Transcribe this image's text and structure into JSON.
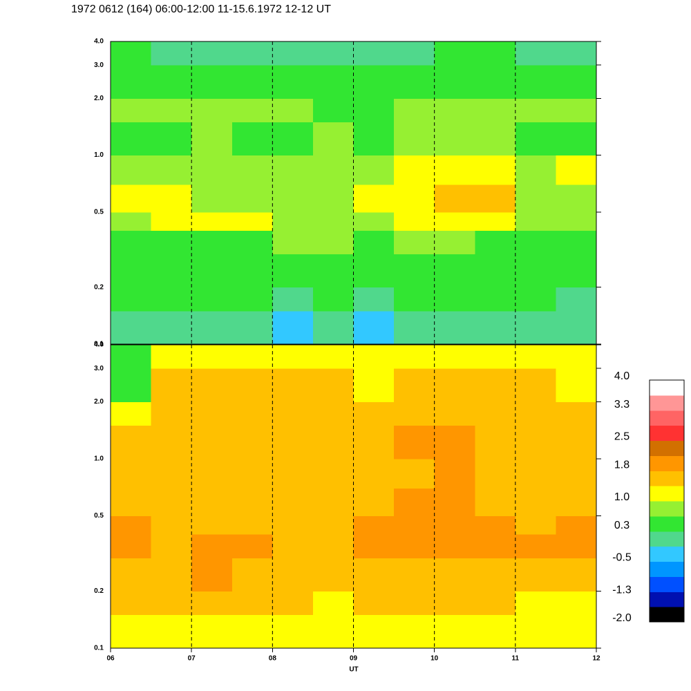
{
  "chart_data": {
    "type": "heatmap",
    "title": "1972 0612 (164) 06:00-12:00 11-15.6.1972  12-12 UT",
    "xlabel": "UT",
    "xlim": [
      6,
      12
    ],
    "xticks": [
      {
        "value": 6,
        "label": "06"
      },
      {
        "value": 7,
        "label": "07"
      },
      {
        "value": 8,
        "label": "08"
      },
      {
        "value": 9,
        "label": "09"
      },
      10,
      11,
      12
    ],
    "ylim": [
      0.1,
      4.0
    ],
    "yticks": [
      0.1,
      0.2,
      0.5,
      {
        "value": 1,
        "label": "1.0"
      },
      {
        "value": 2,
        "label": "2.0"
      },
      {
        "value": 3,
        "label": "3.0"
      },
      {
        "value": 4,
        "label": "4.0"
      }
    ],
    "log_y": true,
    "grid": true,
    "x_edges": [
      6,
      6.5,
      7,
      7.5,
      8,
      8.5,
      9,
      9.5,
      10,
      10.5,
      11,
      11.5,
      12
    ],
    "y_edges": [
      0.1,
      0.15,
      0.2,
      0.3,
      0.4,
      0.5,
      0.7,
      1.0,
      1.5,
      2.0,
      3.0,
      4.0
    ],
    "panels": [
      {
        "values": [
          [
            0.0,
            0.1,
            0.0,
            0.1,
            -0.2,
            0.2,
            -0.3,
            0.1,
            0.0,
            0.1,
            0.0,
            -0.1
          ],
          [
            0.3,
            0.3,
            0.4,
            0.3,
            0.0,
            0.5,
            0.1,
            0.3,
            0.3,
            0.3,
            0.3,
            0.2
          ],
          [
            0.4,
            0.4,
            0.5,
            0.4,
            0.6,
            0.6,
            0.3,
            0.4,
            0.4,
            0.5,
            0.4,
            0.4
          ],
          [
            0.5,
            0.5,
            0.6,
            0.5,
            0.8,
            0.7,
            0.5,
            0.7,
            0.7,
            0.6,
            0.5,
            0.5
          ],
          [
            0.9,
            1.0,
            1.0,
            1.0,
            0.9,
            0.8,
            0.9,
            1.1,
            1.2,
            1.1,
            0.9,
            0.8
          ],
          [
            1.1,
            1.2,
            0.9,
            0.9,
            0.8,
            0.7,
            1.0,
            1.3,
            1.4,
            1.4,
            0.9,
            0.9
          ],
          [
            0.8,
            0.7,
            0.8,
            0.7,
            0.7,
            0.7,
            0.8,
            1.1,
            1.2,
            1.2,
            0.8,
            1.0
          ],
          [
            0.6,
            0.6,
            0.7,
            0.6,
            0.6,
            0.7,
            0.6,
            0.8,
            0.8,
            0.7,
            0.6,
            0.6
          ],
          [
            0.9,
            0.8,
            0.7,
            0.7,
            0.7,
            0.6,
            0.6,
            0.8,
            0.9,
            0.9,
            0.8,
            0.7
          ],
          [
            0.6,
            0.5,
            0.5,
            0.5,
            0.4,
            0.3,
            0.3,
            0.5,
            0.6,
            0.6,
            0.5,
            0.5
          ],
          [
            0.3,
            0.2,
            0.2,
            0.2,
            0.1,
            0.0,
            -0.1,
            0.2,
            0.3,
            0.3,
            0.2,
            0.2
          ]
        ]
      },
      {
        "values": [
          [
            1.2,
            1.3,
            1.3,
            1.2,
            1.2,
            1.1,
            1.2,
            1.3,
            1.3,
            1.2,
            1.1,
            1.0
          ],
          [
            1.5,
            1.5,
            1.6,
            1.4,
            1.4,
            1.3,
            1.4,
            1.5,
            1.5,
            1.4,
            1.3,
            1.3
          ],
          [
            1.7,
            1.7,
            1.8,
            1.7,
            1.6,
            1.5,
            1.6,
            1.7,
            1.7,
            1.6,
            1.5,
            1.6
          ],
          [
            1.9,
            1.7,
            1.9,
            1.8,
            1.7,
            1.7,
            1.8,
            2.0,
            2.1,
            1.9,
            1.8,
            1.8
          ],
          [
            1.8,
            1.6,
            1.7,
            1.6,
            1.6,
            1.7,
            1.8,
            2.0,
            2.1,
            1.8,
            1.7,
            1.9
          ],
          [
            1.6,
            1.5,
            1.6,
            1.5,
            1.4,
            1.6,
            1.6,
            1.8,
            1.8,
            1.7,
            1.6,
            1.7
          ],
          [
            1.5,
            1.5,
            1.5,
            1.6,
            1.4,
            1.5,
            1.5,
            1.7,
            1.8,
            1.7,
            1.6,
            1.6
          ],
          [
            1.4,
            1.6,
            1.6,
            1.5,
            1.4,
            1.5,
            1.5,
            1.8,
            1.8,
            1.7,
            1.6,
            1.5
          ],
          [
            1.0,
            1.5,
            1.6,
            1.5,
            1.5,
            1.5,
            1.4,
            1.7,
            1.7,
            1.7,
            1.6,
            1.4
          ],
          [
            0.6,
            1.4,
            1.5,
            1.4,
            1.4,
            1.4,
            1.3,
            1.6,
            1.6,
            1.6,
            1.5,
            1.3
          ],
          [
            0.5,
            1.1,
            1.2,
            1.1,
            1.1,
            1.0,
            1.0,
            1.3,
            1.3,
            1.2,
            1.1,
            1.0
          ]
        ]
      }
    ],
    "colorbar": {
      "lim": [
        -2,
        4
      ],
      "colors": [
        "#000000",
        "#0010b0",
        "#0050ff",
        "#0096ff",
        "#32c8ff",
        "#50d88c",
        "#32e632",
        "#96f032",
        "#ffff00",
        "#ffc000",
        "#ff9600",
        "#d27000",
        "#ff3232",
        "#ff6464",
        "#ff9696",
        "#ffffff"
      ],
      "ticks": [
        {
          "value": -2,
          "label": "-2.0"
        },
        -1.3,
        -0.5,
        0.3,
        {
          "value": 1,
          "label": "1.0"
        },
        1.8,
        2.5,
        3.3,
        {
          "value": 4,
          "label": "4.0"
        }
      ]
    }
  }
}
